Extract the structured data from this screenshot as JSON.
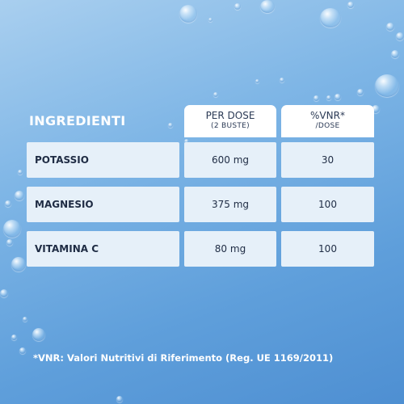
{
  "table": {
    "title": "INGREDIENTI",
    "columns": [
      {
        "line1": "PER DOSE",
        "line2": "(2 BUSTE)"
      },
      {
        "line1": "%VNR*",
        "line2": "/DOSE"
      }
    ],
    "rows": [
      {
        "name": "POTASSIO",
        "dose": "600 mg",
        "vnr": "30"
      },
      {
        "name": "MAGNESIO",
        "dose": "375 mg",
        "vnr": "100"
      },
      {
        "name": "VITAMINA C",
        "dose": "80 mg",
        "vnr": "100"
      }
    ]
  },
  "footnote": "*VNR: Valori Nutritivi di Riferimento (Reg. UE 1169/2011)",
  "colors": {
    "background": "#6aa8de",
    "cell": "#e6f0f9",
    "header": "#ffffff",
    "text": "#1f2c44"
  }
}
